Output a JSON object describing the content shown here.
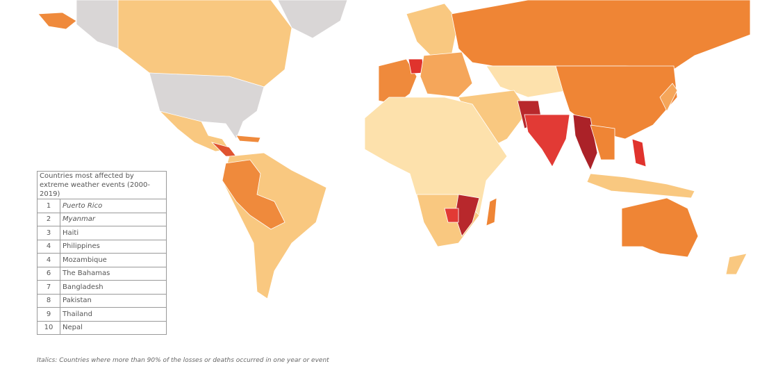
{
  "table": {
    "title": "Countries most affected by extreme weather events (2000-2019)",
    "rows": [
      {
        "rank": 1,
        "country": "Puerto Rico",
        "italic": true
      },
      {
        "rank": 2,
        "country": "Myanmar",
        "italic": true
      },
      {
        "rank": 3,
        "country": "Haiti",
        "italic": false
      },
      {
        "rank": 4,
        "country": "Philippines",
        "italic": false
      },
      {
        "rank": 4,
        "country": "Mozambique",
        "italic": false
      },
      {
        "rank": 6,
        "country": "The Bahamas",
        "italic": false
      },
      {
        "rank": 7,
        "country": "Bangladesh",
        "italic": false
      },
      {
        "rank": 8,
        "country": "Pakistan",
        "italic": false
      },
      {
        "rank": 9,
        "country": "Thailand",
        "italic": false
      },
      {
        "rank": 10,
        "country": "Nepal",
        "italic": false
      }
    ]
  },
  "footnote": "Italics: Countries where more than 90% of the losses or deaths occurred in one year or event"
}
